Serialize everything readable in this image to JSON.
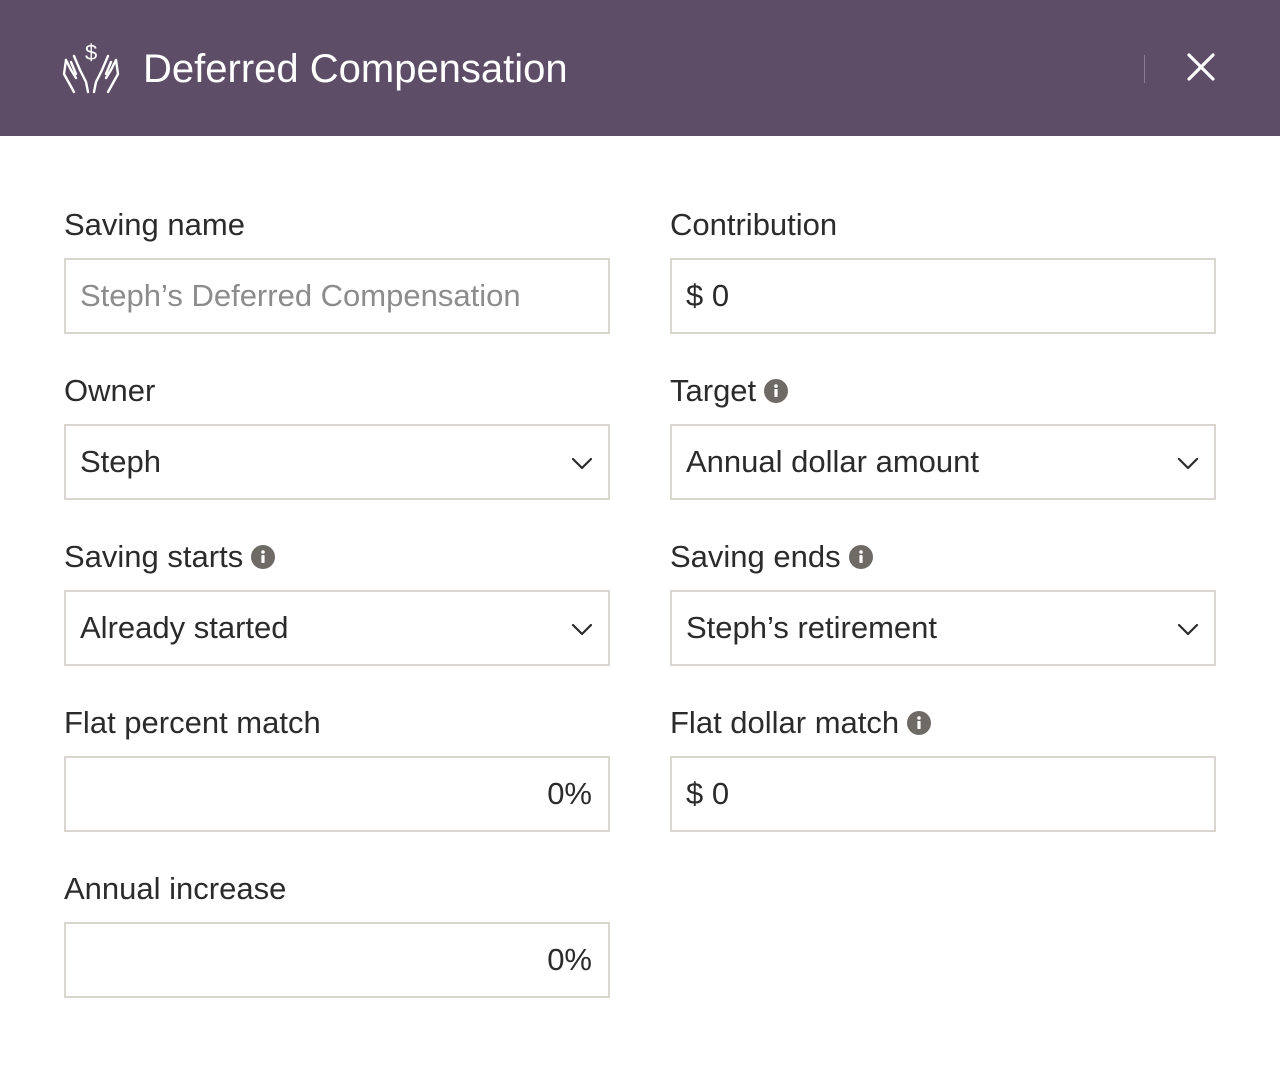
{
  "header": {
    "title": "Deferred Compensation",
    "icon": "hands-dollar-icon",
    "close_icon": "close-icon",
    "background": "#5d4d66"
  },
  "form": {
    "saving_name": {
      "label": "Saving name",
      "placeholder": "Steph’s Deferred Compensation"
    },
    "contribution": {
      "label": "Contribution",
      "value": "$ 0"
    },
    "owner": {
      "label": "Owner",
      "value": "Steph"
    },
    "target": {
      "label": "Target",
      "value": "Annual dollar amount"
    },
    "saving_starts": {
      "label": "Saving starts",
      "value": "Already started"
    },
    "saving_ends": {
      "label": "Saving ends",
      "value": "Steph’s retirement"
    },
    "flat_percent_match": {
      "label": "Flat percent match",
      "value": "0%"
    },
    "flat_dollar_match": {
      "label": "Flat dollar match",
      "value": "$ 0"
    },
    "annual_increase": {
      "label": "Annual increase",
      "value": "0%"
    }
  }
}
